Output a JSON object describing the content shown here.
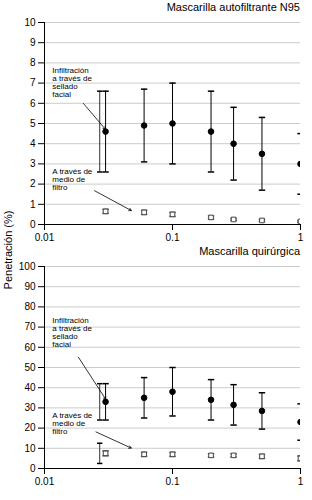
{
  "chart_data": [
    {
      "type": "scatter",
      "title": "Mascarilla autofiltrante N95",
      "ylabel": "Penetración (%)",
      "log": "x",
      "xlim": [
        0.01,
        1
      ],
      "xticks": [
        0.01,
        0.1,
        1
      ],
      "ylim": [
        0,
        10
      ],
      "yticks": [
        0,
        1,
        2,
        3,
        4,
        5,
        6,
        7,
        8,
        9,
        10
      ],
      "grid": true,
      "x": [
        0.03,
        0.06,
        0.1,
        0.2,
        0.3,
        0.5,
        1.0
      ],
      "series": [
        {
          "color": "#000000",
          "marker": "circle",
          "values": [
            4.6,
            4.9,
            5.0,
            4.6,
            4.0,
            3.5,
            3.0
          ],
          "errors": [
            2.0,
            1.8,
            2.0,
            2.0,
            1.8,
            1.8,
            1.5
          ]
        },
        {
          "color": "#444444",
          "marker": "square",
          "values": [
            0.65,
            0.6,
            0.5,
            0.35,
            0.25,
            0.2,
            0.15
          ],
          "errors": [
            0.1,
            0.1,
            0.1,
            0.08,
            0.05,
            0.05,
            0.04
          ]
        }
      ],
      "annotations": [
        {
          "text": "Infiltración\na través de\nsellado\nfacial",
          "x": 0.0115,
          "y": 7.8,
          "arrow_x": 0.031,
          "arrow_y": 4.6
        },
        {
          "text": "A través de\nmedio de\nfiltro",
          "x": 0.0115,
          "y": 2.8,
          "arrow_x": 0.05,
          "arrow_y": 0.62
        }
      ],
      "brackets": [
        {
          "x": 0.027,
          "y": 4.6,
          "err": 2.0
        }
      ]
    },
    {
      "type": "scatter",
      "title": "Mascarilla quirúrgica",
      "log": "x",
      "xlim": [
        0.01,
        1
      ],
      "xticks": [
        0.01,
        0.1,
        1
      ],
      "ylim": [
        0,
        100
      ],
      "yticks": [
        0,
        10,
        20,
        30,
        40,
        50,
        60,
        70,
        80,
        90,
        100
      ],
      "grid": true,
      "x": [
        0.03,
        0.06,
        0.1,
        0.2,
        0.3,
        0.5,
        1.0
      ],
      "series": [
        {
          "color": "#000000",
          "marker": "circle",
          "values": [
            33.0,
            35.0,
            38.0,
            34.0,
            31.5,
            28.5,
            23.0
          ],
          "errors": [
            9.0,
            10.0,
            12.0,
            10.0,
            10.0,
            9.0,
            9.0
          ]
        },
        {
          "color": "#444444",
          "marker": "square",
          "values": [
            7.5,
            7.0,
            7.0,
            6.5,
            6.5,
            6.0,
            5.0
          ],
          "errors": [
            1.2,
            1.0,
            1.0,
            0.8,
            0.8,
            1.0,
            1.2
          ]
        }
      ],
      "annotations": [
        {
          "text": "Infiltración\na través de\nsellado\nfacial",
          "x": 0.0115,
          "y": 75,
          "arrow_x": 0.031,
          "arrow_y": 33.0
        },
        {
          "text": "A través de\nmedio de\nfiltro",
          "x": 0.0115,
          "y": 28,
          "arrow_x": 0.05,
          "arrow_y": 9.5
        }
      ],
      "brackets": [
        {
          "x": 0.027,
          "y": 33.0,
          "err": 9.0
        },
        {
          "x": 0.027,
          "y": 7.5,
          "err": 5.0
        }
      ]
    }
  ]
}
